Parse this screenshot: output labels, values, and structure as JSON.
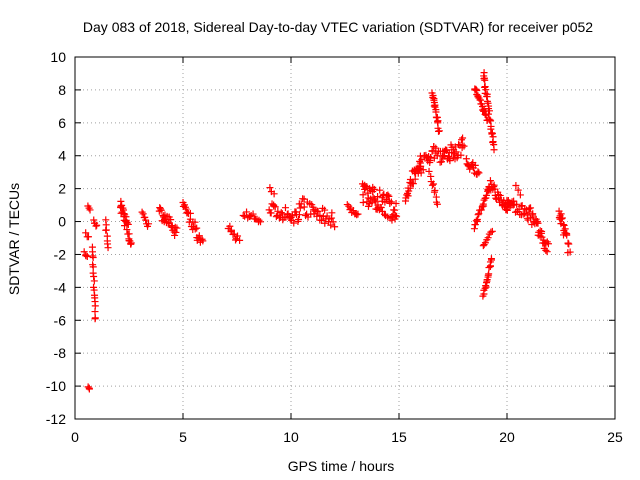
{
  "chart_data": {
    "type": "scatter",
    "title": "Day 083 of 2018, Sidereal Day-to-day VTEC variation (SDTVAR) for receiver p052",
    "xlabel": "GPS time / hours",
    "ylabel": "SDTVAR / TECUs",
    "xlim": [
      0,
      25
    ],
    "ylim": [
      -12,
      10
    ],
    "xticks": [
      0,
      5,
      10,
      15,
      20,
      25
    ],
    "yticks": [
      -12,
      -10,
      -8,
      -6,
      -4,
      -2,
      0,
      2,
      4,
      6,
      8,
      10
    ],
    "grid": true,
    "marker": "+",
    "color": "#ff0000",
    "series": [
      {
        "name": "SDTVAR",
        "segments": [
          {
            "x0": 0.45,
            "x1": 0.55,
            "y0": -1.9,
            "y1": -2.1,
            "n": 4,
            "spread": 0.15
          },
          {
            "x0": 0.5,
            "x1": 0.6,
            "y0": -0.7,
            "y1": -1.0,
            "n": 3,
            "spread": 0.2
          },
          {
            "x0": 0.6,
            "x1": 0.68,
            "y0": 0.9,
            "y1": 0.7,
            "n": 3,
            "spread": 0.1
          },
          {
            "x0": 0.6,
            "x1": 0.68,
            "y0": -10.0,
            "y1": -10.2,
            "n": 3,
            "spread": 0.1
          },
          {
            "x0": 0.8,
            "x1": 0.95,
            "y0": -1.5,
            "y1": -6.0,
            "n": 18,
            "spread": 0.25
          },
          {
            "x0": 0.85,
            "x1": 1.0,
            "y0": 0.1,
            "y1": -0.3,
            "n": 5,
            "spread": 0.2
          },
          {
            "x0": 1.4,
            "x1": 1.55,
            "y0": 0.0,
            "y1": -1.5,
            "n": 8,
            "spread": 0.3
          },
          {
            "x0": 2.1,
            "x1": 2.6,
            "y0": 1.0,
            "y1": -1.2,
            "n": 28,
            "spread": 0.9
          },
          {
            "x0": 3.1,
            "x1": 3.4,
            "y0": 0.4,
            "y1": -0.2,
            "n": 8,
            "spread": 0.4
          },
          {
            "x0": 3.9,
            "x1": 4.7,
            "y0": 0.6,
            "y1": -0.6,
            "n": 26,
            "spread": 0.8
          },
          {
            "x0": 5.0,
            "x1": 5.9,
            "y0": 1.1,
            "y1": -1.4,
            "n": 26,
            "spread": 0.8
          },
          {
            "x0": 7.1,
            "x1": 7.6,
            "y0": -0.3,
            "y1": -1.2,
            "n": 10,
            "spread": 0.5
          },
          {
            "x0": 7.8,
            "x1": 8.6,
            "y0": 0.6,
            "y1": -0.1,
            "n": 14,
            "spread": 0.5
          },
          {
            "x0": 9.0,
            "x1": 9.2,
            "y0": 2.0,
            "y1": 1.7,
            "n": 3,
            "spread": 0.2
          },
          {
            "x0": 9.0,
            "x1": 10.4,
            "y0": 0.8,
            "y1": 0.2,
            "n": 32,
            "spread": 0.9
          },
          {
            "x0": 10.4,
            "x1": 12.0,
            "y0": 1.0,
            "y1": 0.0,
            "n": 36,
            "spread": 1.0
          },
          {
            "x0": 12.6,
            "x1": 13.1,
            "y0": 1.0,
            "y1": 0.4,
            "n": 10,
            "spread": 0.5
          },
          {
            "x0": 13.3,
            "x1": 14.9,
            "y0": 1.8,
            "y1": 0.6,
            "n": 60,
            "spread": 1.4
          },
          {
            "x0": 15.3,
            "x1": 16.0,
            "y0": 1.5,
            "y1": 3.8,
            "n": 26,
            "spread": 1.0
          },
          {
            "x0": 15.9,
            "x1": 16.8,
            "y0": 3.2,
            "y1": 4.4,
            "n": 26,
            "spread": 0.9
          },
          {
            "x0": 16.55,
            "x1": 16.85,
            "y0": 7.8,
            "y1": 5.5,
            "n": 20,
            "spread": 0.3
          },
          {
            "x0": 16.4,
            "x1": 16.8,
            "y0": 3.0,
            "y1": 1.2,
            "n": 10,
            "spread": 0.5
          },
          {
            "x0": 16.9,
            "x1": 18.0,
            "y0": 3.8,
            "y1": 4.6,
            "n": 36,
            "spread": 1.0
          },
          {
            "x0": 18.1,
            "x1": 18.7,
            "y0": 3.6,
            "y1": 3.0,
            "n": 16,
            "spread": 0.6
          },
          {
            "x0": 18.5,
            "x1": 19.1,
            "y0": 8.1,
            "y1": 6.2,
            "n": 22,
            "spread": 0.3
          },
          {
            "x0": 18.9,
            "x1": 19.4,
            "y0": 9.0,
            "y1": 4.5,
            "n": 32,
            "spread": 0.4
          },
          {
            "x0": 18.5,
            "x1": 19.2,
            "y0": -0.4,
            "y1": 2.2,
            "n": 24,
            "spread": 0.4
          },
          {
            "x0": 18.9,
            "x1": 19.3,
            "y0": -4.6,
            "y1": -2.2,
            "n": 18,
            "spread": 0.3
          },
          {
            "x0": 18.9,
            "x1": 19.3,
            "y0": -1.6,
            "y1": -0.6,
            "n": 8,
            "spread": 0.3
          },
          {
            "x0": 19.2,
            "x1": 20.1,
            "y0": 2.2,
            "y1": 0.8,
            "n": 28,
            "spread": 0.7
          },
          {
            "x0": 19.9,
            "x1": 21.0,
            "y0": 1.3,
            "y1": 0.4,
            "n": 28,
            "spread": 0.7
          },
          {
            "x0": 20.4,
            "x1": 20.6,
            "y0": 2.2,
            "y1": 1.7,
            "n": 3,
            "spread": 0.2
          },
          {
            "x0": 21.0,
            "x1": 21.9,
            "y0": 0.6,
            "y1": -1.6,
            "n": 34,
            "spread": 0.9
          },
          {
            "x0": 22.4,
            "x1": 22.9,
            "y0": 0.6,
            "y1": -1.8,
            "n": 22,
            "spread": 0.9
          }
        ]
      }
    ]
  }
}
